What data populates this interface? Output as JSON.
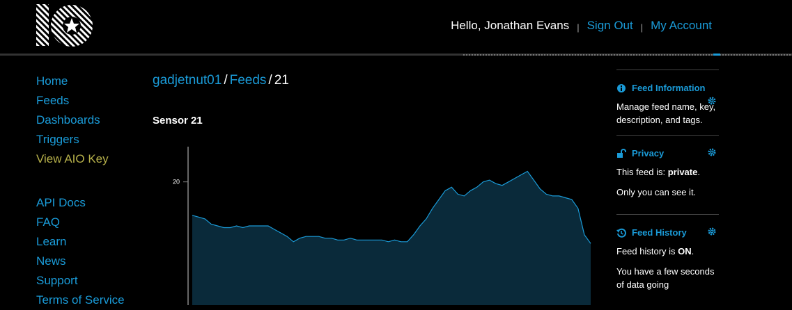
{
  "header": {
    "greeting": "Hello, Jonathan Evans",
    "sep": "|",
    "sign_out": "Sign Out",
    "my_account": "My Account"
  },
  "nav": {
    "items": [
      "Home",
      "Feeds",
      "Dashboards",
      "Triggers",
      "View AIO Key"
    ],
    "items2": [
      "API Docs",
      "FAQ",
      "Learn",
      "News",
      "Support",
      "Terms of Service"
    ]
  },
  "breadcrumb": {
    "user": "gadjetnut01",
    "slash": "/",
    "feeds": "Feeds",
    "current": "21"
  },
  "feed": {
    "name": "Sensor 21"
  },
  "sidebar": {
    "info": {
      "title": "Feed Information",
      "text": "Manage feed name, key, description, and tags."
    },
    "privacy": {
      "title": "Privacy",
      "line1_prefix": "This feed is: ",
      "line1_value": "private",
      "line1_suffix": ".",
      "line2": "Only you can see it."
    },
    "history": {
      "title": "Feed History",
      "line1_prefix": "Feed history is ",
      "line1_value": "ON",
      "line1_suffix": ".",
      "line2": "You have a few seconds of data going"
    }
  },
  "colors": {
    "accent": "#1a9bd8",
    "aio_key": "#b6b04a",
    "chart_fill": "#0a2a3a",
    "chart_line": "#1a9bd8"
  },
  "chart_data": {
    "type": "area",
    "y_tick_label": "20",
    "y_tick_value": 20,
    "values": [
      18.1,
      18.0,
      17.9,
      17.6,
      17.5,
      17.4,
      17.4,
      17.5,
      17.4,
      17.5,
      17.5,
      17.5,
      17.5,
      17.3,
      17.1,
      16.9,
      16.6,
      16.8,
      16.9,
      16.9,
      16.9,
      16.8,
      16.8,
      16.7,
      16.7,
      16.8,
      16.7,
      16.7,
      16.7,
      16.7,
      16.7,
      16.6,
      16.7,
      16.6,
      16.6,
      17.0,
      17.5,
      17.9,
      18.5,
      19.0,
      19.5,
      19.7,
      19.3,
      19.2,
      19.5,
      19.7,
      20.0,
      20.1,
      19.9,
      19.8,
      20.0,
      20.2,
      20.4,
      20.6,
      20.1,
      19.6,
      19.3,
      19.2,
      19.2,
      19.1,
      19.0,
      18.5,
      17.0,
      16.5
    ],
    "ylim": [
      13,
      22
    ]
  }
}
